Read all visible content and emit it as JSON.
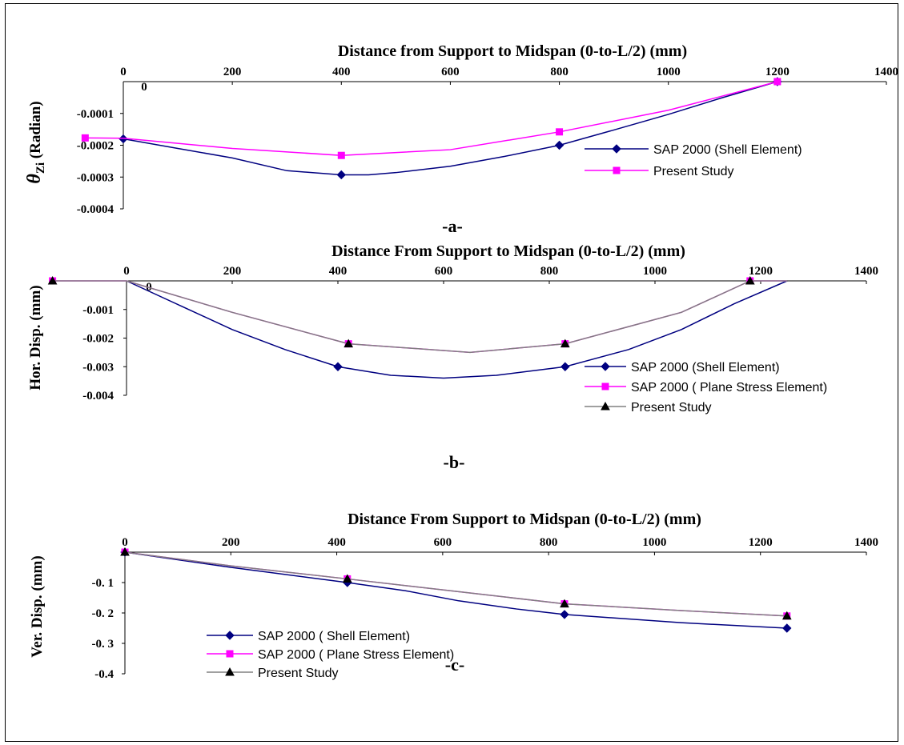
{
  "chart_data": [
    {
      "type": "line",
      "panel_label": "-a-",
      "xlabel": "Distance from Support to Midspan (0-to-L/2) (mm)",
      "ylabel_symbol": "θ",
      "ylabel_sub": "Zi",
      "ylabel_rest": " (Radian)",
      "xlim": [
        0,
        1400
      ],
      "ylim": [
        -0.0004,
        0
      ],
      "xticks": [
        "0",
        "200",
        "400",
        "600",
        "800",
        "1000",
        "1200",
        "1400"
      ],
      "yticks": [
        "0",
        "-0.0001",
        "-0.0002",
        "-0.0003",
        "-0.0004"
      ],
      "legend_position": "right",
      "series": [
        {
          "name": "SAP 2000 (Shell Element)",
          "color": "#000080",
          "marker": "diamond",
          "x": [
            0,
            100,
            200,
            300,
            400,
            450,
            500,
            600,
            700,
            800,
            900,
            1000,
            1100,
            1200
          ],
          "y": [
            -0.00018,
            -0.00021,
            -0.00024,
            -0.00028,
            -0.000293,
            -0.000293,
            -0.000286,
            -0.000266,
            -0.000235,
            -0.0002,
            -0.000152,
            -0.000103,
            -5e-05,
            0
          ],
          "markers_at": [
            0,
            4,
            9,
            13
          ]
        },
        {
          "name": "Present Study",
          "color": "#ff00ff",
          "marker": "square",
          "x": [
            -70,
            0,
            200,
            400,
            600,
            800,
            1000,
            1200
          ],
          "y": [
            -0.000177,
            -0.000178,
            -0.00021,
            -0.000232,
            -0.000214,
            -0.000158,
            -9e-05,
            0
          ],
          "markers_at": [
            0,
            3,
            5,
            7
          ]
        }
      ]
    },
    {
      "type": "line",
      "panel_label": "-b-",
      "xlabel": "Distance From Support to Midspan (0-to-L/2)  (mm)",
      "ylabel": "Hor.  Disp. (mm)",
      "xlim": [
        0,
        1400
      ],
      "ylim": [
        -0.004,
        0
      ],
      "xticks": [
        "0",
        "200",
        "400",
        "600",
        "800",
        "1000",
        "1200",
        "1400"
      ],
      "yticks": [
        "0",
        "-0.001",
        "-0.002",
        "-0.003",
        "-0.004"
      ],
      "legend_position": "right",
      "series": [
        {
          "name": "SAP 2000  (Shell Element)",
          "color": "#000080",
          "marker": "diamond",
          "x": [
            0,
            100,
            200,
            300,
            400,
            500,
            600,
            700,
            830,
            950,
            1050,
            1150,
            1250
          ],
          "y": [
            0,
            -0.00085,
            -0.0017,
            -0.0024,
            -0.003,
            -0.0033,
            -0.0034,
            -0.0033,
            -0.003,
            -0.0024,
            -0.0017,
            -0.0008,
            0
          ],
          "markers_at": [
            4,
            8
          ]
        },
        {
          "name": "SAP 2000  ( Plane Stress Element)",
          "color": "#ff00ff",
          "marker": "square",
          "x": [
            -140,
            0,
            200,
            420,
            650,
            830,
            1050,
            1180,
            1250
          ],
          "y": [
            0,
            0,
            -0.0011,
            -0.0022,
            -0.0025,
            -0.0022,
            -0.0011,
            0,
            0
          ],
          "markers_at": [
            0,
            3,
            5,
            7
          ]
        },
        {
          "name": "Present Study",
          "color": "#808080",
          "marker": "triangle",
          "x": [
            -140,
            0,
            200,
            420,
            650,
            830,
            1050,
            1180,
            1250
          ],
          "y": [
            0,
            0,
            -0.0011,
            -0.0022,
            -0.0025,
            -0.0022,
            -0.0011,
            0,
            0
          ],
          "markers_at": [
            0,
            3,
            5,
            7
          ]
        }
      ]
    },
    {
      "type": "line",
      "panel_label": "-c-",
      "xlabel": "Distance From Support to Midspan (0-to-L/2)  (mm)",
      "ylabel": "Ver. Disp. (mm)",
      "xlim": [
        0,
        1400
      ],
      "ylim": [
        -0.4,
        0
      ],
      "xticks": [
        "0",
        "200",
        "400",
        "600",
        "800",
        "1000",
        "1200",
        "1400"
      ],
      "yticks": [
        "-0. 1",
        "-0. 2",
        "-0. 3",
        "-0.4"
      ],
      "legend_position": "bottom-left",
      "series": [
        {
          "name": "SAP 2000 ( Shell Element)",
          "color": "#000080",
          "marker": "diamond",
          "x": [
            0,
            200,
            420,
            530,
            630,
            740,
            830,
            1050,
            1250
          ],
          "y": [
            0,
            -0.05,
            -0.1,
            -0.127,
            -0.16,
            -0.187,
            -0.205,
            -0.232,
            -0.25
          ],
          "markers_at": [
            0,
            2,
            6,
            8
          ]
        },
        {
          "name": "SAP 2000 ( Plane Stress Element)",
          "color": "#ff00ff",
          "marker": "square",
          "x": [
            0,
            200,
            420,
            630,
            830,
            1050,
            1250
          ],
          "y": [
            0,
            -0.045,
            -0.088,
            -0.13,
            -0.17,
            -0.192,
            -0.21
          ],
          "markers_at": [
            0,
            2,
            4,
            6
          ]
        },
        {
          "name": "Present Study",
          "color": "#808080",
          "marker": "triangle",
          "x": [
            0,
            200,
            420,
            630,
            830,
            1050,
            1250
          ],
          "y": [
            0,
            -0.045,
            -0.088,
            -0.13,
            -0.17,
            -0.192,
            -0.21
          ],
          "markers_at": [
            0,
            2,
            4,
            6
          ]
        }
      ]
    }
  ]
}
